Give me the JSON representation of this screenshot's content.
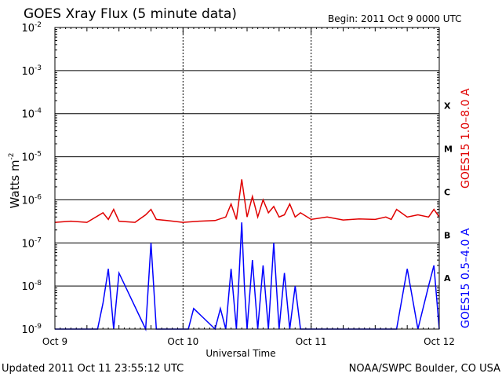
{
  "chart_data": {
    "type": "line",
    "title": "GOES Xray Flux (5 minute data)",
    "begin_label": "Begin:  2011 Oct 9 0000 UTC",
    "ylabel": "Watts m",
    "ylabel_superscript": "-2",
    "xlabel": "Universal Time",
    "y_scale": "log",
    "ylim": [
      1e-09,
      0.01
    ],
    "y_ticks": [
      {
        "base": "10",
        "exp": "-2"
      },
      {
        "base": "10",
        "exp": "-3"
      },
      {
        "base": "10",
        "exp": "-4"
      },
      {
        "base": "10",
        "exp": "-5"
      },
      {
        "base": "10",
        "exp": "-6"
      },
      {
        "base": "10",
        "exp": "-7"
      },
      {
        "base": "10",
        "exp": "-8"
      },
      {
        "base": "10",
        "exp": "-9"
      }
    ],
    "xlim": [
      "2011-10-09T00:00",
      "2011-10-12T00:00"
    ],
    "x_ticks": [
      "Oct 9",
      "Oct 10",
      "Oct 11",
      "Oct 12"
    ],
    "flare_classes": [
      "X",
      "M",
      "C",
      "B",
      "A"
    ],
    "grid": true,
    "updated": "Updated 2011 Oct 11 23:55:12 UTC",
    "source": "NOAA/SWPC Boulder, CO USA",
    "colors": {
      "long": "#e00000",
      "short": "#0000ff"
    },
    "series": [
      {
        "name": "GOES15 1.0–8.0 A",
        "color": "#e00000",
        "t": [
          "2011-10-09T00:00",
          "2011-10-09T03:00",
          "2011-10-09T06:00",
          "2011-10-09T09:00",
          "2011-10-09T10:00",
          "2011-10-09T11:00",
          "2011-10-09T12:00",
          "2011-10-09T15:00",
          "2011-10-09T17:00",
          "2011-10-09T18:00",
          "2011-10-09T19:00",
          "2011-10-09T21:00",
          "2011-10-10T00:00",
          "2011-10-10T03:00",
          "2011-10-10T06:00",
          "2011-10-10T08:00",
          "2011-10-10T09:00",
          "2011-10-10T10:00",
          "2011-10-10T11:00",
          "2011-10-10T12:00",
          "2011-10-10T13:00",
          "2011-10-10T14:00",
          "2011-10-10T15:00",
          "2011-10-10T16:00",
          "2011-10-10T17:00",
          "2011-10-10T18:00",
          "2011-10-10T19:00",
          "2011-10-10T20:00",
          "2011-10-10T21:00",
          "2011-10-10T22:00",
          "2011-10-11T00:00",
          "2011-10-11T03:00",
          "2011-10-11T06:00",
          "2011-10-11T09:00",
          "2011-10-11T12:00",
          "2011-10-11T14:00",
          "2011-10-11T15:00",
          "2011-10-11T16:00",
          "2011-10-11T18:00",
          "2011-10-11T20:00",
          "2011-10-11T22:00",
          "2011-10-11T23:00",
          "2011-10-12T00:00"
        ],
        "values": [
          3e-07,
          3.2e-07,
          3e-07,
          5e-07,
          3.5e-07,
          6e-07,
          3.2e-07,
          3e-07,
          4.5e-07,
          6e-07,
          3.5e-07,
          3.3e-07,
          3e-07,
          3.2e-07,
          3.3e-07,
          4e-07,
          8e-07,
          3.5e-07,
          3e-06,
          4e-07,
          1.2e-06,
          4e-07,
          1e-06,
          5e-07,
          7e-07,
          4e-07,
          4.5e-07,
          8e-07,
          4e-07,
          5e-07,
          3.5e-07,
          4e-07,
          3.4e-07,
          3.6e-07,
          3.5e-07,
          4e-07,
          3.5e-07,
          6e-07,
          4e-07,
          4.5e-07,
          4e-07,
          6e-07,
          4e-07
        ]
      },
      {
        "name": "GOES15 0.5–4.0 A",
        "color": "#0000ff",
        "t": [
          "2011-10-09T00:00",
          "2011-10-09T08:00",
          "2011-10-09T09:00",
          "2011-10-09T10:00",
          "2011-10-09T11:00",
          "2011-10-09T12:00",
          "2011-10-09T17:00",
          "2011-10-09T18:00",
          "2011-10-09T19:00",
          "2011-10-10T01:00",
          "2011-10-10T02:00",
          "2011-10-10T06:00",
          "2011-10-10T07:00",
          "2011-10-10T08:00",
          "2011-10-10T09:00",
          "2011-10-10T10:00",
          "2011-10-10T11:00",
          "2011-10-10T11:30",
          "2011-10-10T12:00",
          "2011-10-10T13:00",
          "2011-10-10T14:00",
          "2011-10-10T15:00",
          "2011-10-10T16:00",
          "2011-10-10T17:00",
          "2011-10-10T18:00",
          "2011-10-10T19:00",
          "2011-10-10T20:00",
          "2011-10-10T21:00",
          "2011-10-10T22:00",
          "2011-10-11T00:00",
          "2011-10-11T16:00",
          "2011-10-11T18:00",
          "2011-10-11T20:00",
          "2011-10-11T22:00",
          "2011-10-11T23:00",
          "2011-10-12T00:00"
        ],
        "values": [
          1e-09,
          1e-09,
          4e-09,
          2.5e-08,
          1e-09,
          2e-08,
          1e-09,
          1e-07,
          1e-09,
          1e-09,
          3e-09,
          1e-09,
          3e-09,
          1e-09,
          2.5e-08,
          1e-09,
          3e-07,
          1e-08,
          1e-09,
          4e-08,
          1e-09,
          3e-08,
          1e-09,
          1e-07,
          1e-09,
          2e-08,
          1e-09,
          1e-08,
          1e-09,
          1e-09,
          1e-09,
          2.5e-08,
          1e-09,
          1e-08,
          3e-08,
          1e-09
        ]
      }
    ]
  }
}
